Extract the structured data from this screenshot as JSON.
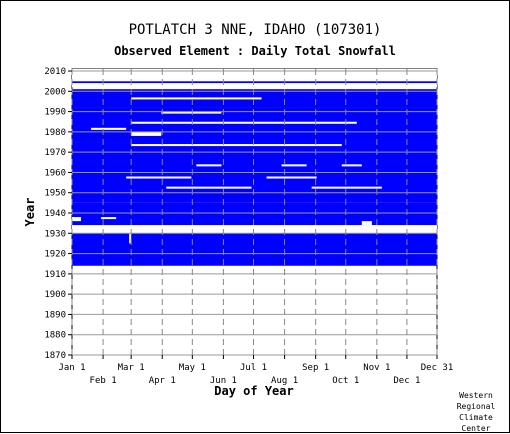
{
  "chart_data": {
    "type": "heatmap",
    "title": "POTLATCH 3 NNE, IDAHO   (107301)",
    "subtitle": "Observed Element : Daily Total Snowfall",
    "xlabel": "Day of Year",
    "ylabel": "Year",
    "x_ticks_top": [
      "Jan 1",
      "Mar 1",
      "May 1",
      "Jul 1",
      "Sep 1",
      "Nov 1",
      "Dec 31"
    ],
    "x_ticks_bottom": [
      "Feb 1",
      "Apr 1",
      "Jun 1",
      "Aug 1",
      "Oct 1",
      "Dec 1"
    ],
    "y_ticks": [
      1870,
      1880,
      1890,
      1900,
      1910,
      1920,
      1930,
      1940,
      1950,
      1960,
      1970,
      1980,
      1990,
      2000,
      2010
    ],
    "ylim": [
      1870,
      2011
    ],
    "xlim_days": [
      1,
      365
    ],
    "data_color": "#0000ff",
    "grid": true,
    "coverage_blocks": [
      {
        "years": [
          1914,
          1930
        ],
        "days": [
          1,
          365
        ]
      },
      {
        "years": [
          1934,
          1945
        ],
        "days": [
          1,
          365
        ]
      },
      {
        "years": [
          1945,
          1960
        ],
        "days": [
          1,
          365
        ]
      },
      {
        "years": [
          1960,
          1975
        ],
        "days": [
          1,
          365
        ]
      },
      {
        "years": [
          1975,
          1992
        ],
        "days": [
          1,
          365
        ]
      },
      {
        "years": [
          1992,
          2001
        ],
        "days": [
          1,
          365
        ]
      },
      {
        "years": [
          2004,
          2005
        ],
        "days": [
          1,
          365
        ]
      },
      {
        "years": [
          2000,
          2001
        ],
        "days": [
          1,
          365
        ]
      }
    ],
    "missing_blocks": [
      {
        "years": [
          1930,
          1932
        ],
        "days": [
          1,
          365
        ]
      },
      {
        "years": [
          1932,
          1934
        ],
        "days": [
          1,
          365
        ]
      },
      {
        "years": [
          1925,
          1932
        ],
        "days": [
          58,
          60
        ]
      },
      {
        "years": [
          1936,
          1938
        ],
        "days": [
          1,
          10
        ]
      },
      {
        "years": [
          1937,
          1938
        ],
        "days": [
          30,
          45
        ]
      },
      {
        "years": [
          1934,
          1936
        ],
        "days": [
          290,
          300
        ]
      },
      {
        "years": [
          1952,
          1953
        ],
        "days": [
          95,
          180
        ]
      },
      {
        "years": [
          1952,
          1953
        ],
        "days": [
          240,
          310
        ]
      },
      {
        "years": [
          1957,
          1958
        ],
        "days": [
          55,
          120
        ]
      },
      {
        "years": [
          1957,
          1958
        ],
        "days": [
          195,
          245
        ]
      },
      {
        "years": [
          1963,
          1964
        ],
        "days": [
          125,
          150
        ]
      },
      {
        "years": [
          1963,
          1964
        ],
        "days": [
          210,
          235
        ]
      },
      {
        "years": [
          1963,
          1964
        ],
        "days": [
          270,
          290
        ]
      },
      {
        "years": [
          1984,
          1985
        ],
        "days": [
          60,
          285
        ]
      },
      {
        "years": [
          1973,
          1974
        ],
        "days": [
          60,
          270
        ]
      },
      {
        "years": [
          1978,
          1980
        ],
        "days": [
          60,
          90
        ]
      },
      {
        "years": [
          1981,
          1982
        ],
        "days": [
          20,
          55
        ]
      },
      {
        "years": [
          1989,
          1990
        ],
        "days": [
          90,
          150
        ]
      },
      {
        "years": [
          1996,
          1997
        ],
        "days": [
          60,
          190
        ]
      },
      {
        "years": [
          2002,
          2004
        ],
        "days": [
          1,
          365
        ]
      },
      {
        "years": [
          2005,
          2011
        ],
        "days": [
          1,
          365
        ]
      }
    ]
  },
  "credit": [
    "Western",
    "Regional",
    "Climate",
    "Center"
  ]
}
